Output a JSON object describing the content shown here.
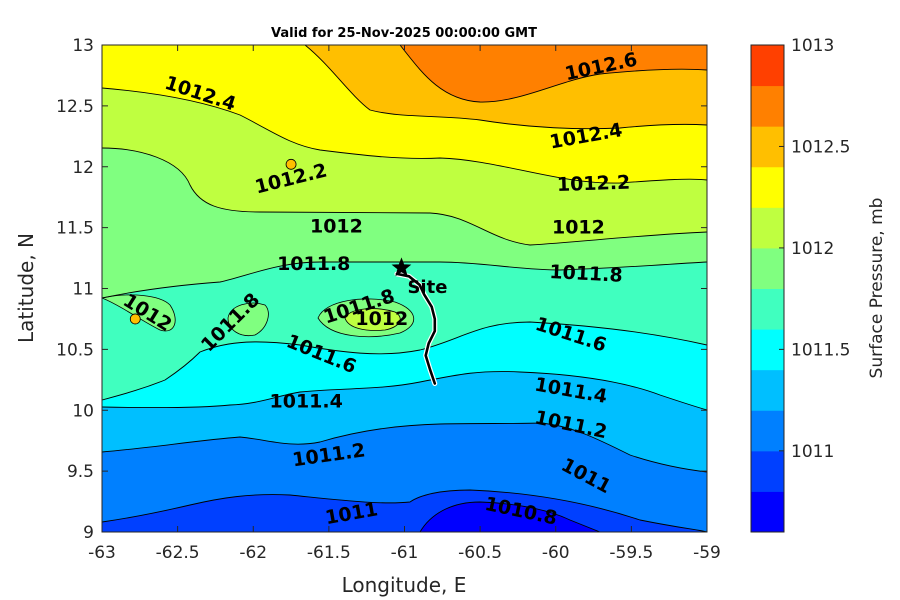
{
  "chart_data": {
    "type": "contour",
    "title": "Valid for 25-Nov-2025 00:00:00 GMT",
    "xlabel": "Longitude, E",
    "ylabel": "Latitude, N",
    "xlim": [
      -63,
      -59
    ],
    "ylim": [
      9,
      13
    ],
    "xticks": [
      -63,
      -62.5,
      -62,
      -61.5,
      -61,
      -60.5,
      -60,
      -59.5,
      -59
    ],
    "yticks": [
      9,
      9.5,
      10,
      10.5,
      11,
      11.5,
      12,
      12.5,
      13
    ],
    "colorbar": {
      "label": "Surface Pressure, mb",
      "range": [
        1010.6,
        1013
      ],
      "ticks": [
        1011,
        1011.5,
        1012,
        1012.5,
        1013
      ],
      "levels": [
        {
          "value": 1010.6,
          "color": "#0000ff"
        },
        {
          "value": 1010.8,
          "color": "#0040ff"
        },
        {
          "value": 1011.0,
          "color": "#0080ff"
        },
        {
          "value": 1011.2,
          "color": "#00bfff"
        },
        {
          "value": 1011.4,
          "color": "#00ffff"
        },
        {
          "value": 1011.6,
          "color": "#40ffbf"
        },
        {
          "value": 1011.8,
          "color": "#80ff80"
        },
        {
          "value": 1012.0,
          "color": "#bfff40"
        },
        {
          "value": 1012.2,
          "color": "#ffff00"
        },
        {
          "value": 1012.4,
          "color": "#ffbf00"
        },
        {
          "value": 1012.6,
          "color": "#ff8000"
        },
        {
          "value": 1012.8,
          "color": "#ff4000"
        },
        {
          "value": 1013.0,
          "color": "#ff0000"
        }
      ]
    },
    "contour_labels": [
      {
        "text": "1012.6",
        "lon": -59.7,
        "lat": 12.82,
        "angle": -12
      },
      {
        "text": "1012.4",
        "lon": -62.35,
        "lat": 12.6,
        "angle": 18
      },
      {
        "text": "1012.4",
        "lon": -59.8,
        "lat": 12.25,
        "angle": -10
      },
      {
        "text": "1012.2",
        "lon": -61.75,
        "lat": 11.9,
        "angle": -14
      },
      {
        "text": "1012.2",
        "lon": -59.75,
        "lat": 11.86,
        "angle": -2
      },
      {
        "text": "1012",
        "lon": -61.45,
        "lat": 11.51,
        "angle": 0
      },
      {
        "text": "1012",
        "lon": -59.85,
        "lat": 11.5,
        "angle": 0
      },
      {
        "text": "1011.8",
        "lon": -61.6,
        "lat": 11.2,
        "angle": 0
      },
      {
        "text": "1011.8",
        "lon": -59.8,
        "lat": 11.12,
        "angle": 3
      },
      {
        "text": "1012",
        "lon": -62.7,
        "lat": 10.8,
        "angle": 32
      },
      {
        "text": "1011.8",
        "lon": -62.15,
        "lat": 10.72,
        "angle": -45
      },
      {
        "text": "1011.8",
        "lon": -61.3,
        "lat": 10.85,
        "angle": -18
      },
      {
        "text": "1012",
        "lon": -61.15,
        "lat": 10.75,
        "angle": 0
      },
      {
        "text": "1011.6",
        "lon": -61.55,
        "lat": 10.46,
        "angle": 22
      },
      {
        "text": "1011.6",
        "lon": -59.9,
        "lat": 10.62,
        "angle": 18
      },
      {
        "text": "1011.4",
        "lon": -61.65,
        "lat": 10.07,
        "angle": 0
      },
      {
        "text": "1011.4",
        "lon": -59.9,
        "lat": 10.16,
        "angle": 10
      },
      {
        "text": "1011.2",
        "lon": -61.5,
        "lat": 9.63,
        "angle": -8
      },
      {
        "text": "1011.2",
        "lon": -59.9,
        "lat": 9.88,
        "angle": 12
      },
      {
        "text": "1011",
        "lon": -59.8,
        "lat": 9.46,
        "angle": 28
      },
      {
        "text": "1011",
        "lon": -61.35,
        "lat": 9.15,
        "angle": -10
      },
      {
        "text": "1010.8",
        "lon": -60.23,
        "lat": 9.17,
        "angle": 12
      }
    ],
    "marker": {
      "label": "Site",
      "lon": -61.02,
      "lat": 11.17
    },
    "track": [
      [
        -61.05,
        11.12
      ],
      [
        -60.97,
        11.1
      ],
      [
        -60.9,
        11.03
      ],
      [
        -60.87,
        10.95
      ],
      [
        -60.82,
        10.85
      ],
      [
        -60.8,
        10.75
      ],
      [
        -60.8,
        10.65
      ],
      [
        -60.84,
        10.55
      ],
      [
        -60.86,
        10.45
      ],
      [
        -60.83,
        10.33
      ],
      [
        -60.8,
        10.22
      ]
    ],
    "extra_points": [
      {
        "lon": -61.75,
        "lat": 12.02
      },
      {
        "lon": -62.78,
        "lat": 10.75
      }
    ]
  }
}
